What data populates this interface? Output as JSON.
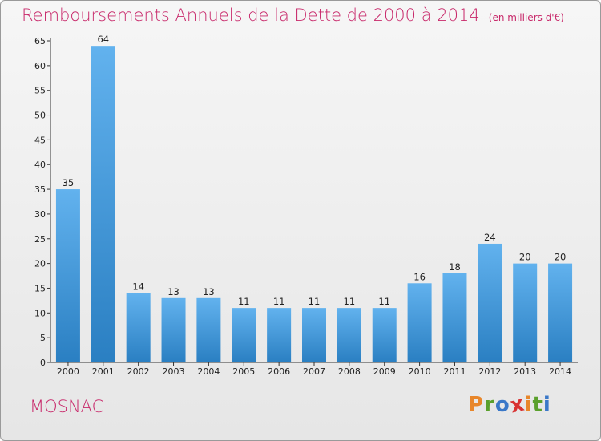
{
  "header": {
    "title": "Remboursements Annuels de la Dette de 2000 à 2014",
    "unit": "(en milliers d'€)"
  },
  "footer": {
    "commune": "MOSNAC",
    "logo_letters": [
      "P",
      "r",
      "o",
      "x",
      "i",
      "t",
      "i"
    ],
    "logo_colors": [
      "#e8862a",
      "#5aa02c",
      "#3a78c8",
      "#d83232",
      "#e8862a",
      "#5aa02c",
      "#3a78c8"
    ]
  },
  "colors": {
    "accent": "#c8286a",
    "bar_top": "#62b2ee",
    "bar_bottom": "#2a7fc2"
  },
  "chart_data": {
    "type": "bar",
    "categories": [
      "2000",
      "2001",
      "2002",
      "2003",
      "2004",
      "2005",
      "2006",
      "2007",
      "2008",
      "2009",
      "2010",
      "2011",
      "2012",
      "2013",
      "2014"
    ],
    "values": [
      35,
      64,
      14,
      13,
      13,
      11,
      11,
      11,
      11,
      11,
      16,
      18,
      24,
      20,
      20
    ],
    "title": "Remboursements Annuels de la Dette de 2000 à 2014",
    "ylim": [
      0,
      65
    ],
    "yticks": [
      0,
      5,
      10,
      15,
      20,
      25,
      30,
      35,
      40,
      45,
      50,
      55,
      60,
      65
    ],
    "grid": false,
    "legend": "none"
  }
}
